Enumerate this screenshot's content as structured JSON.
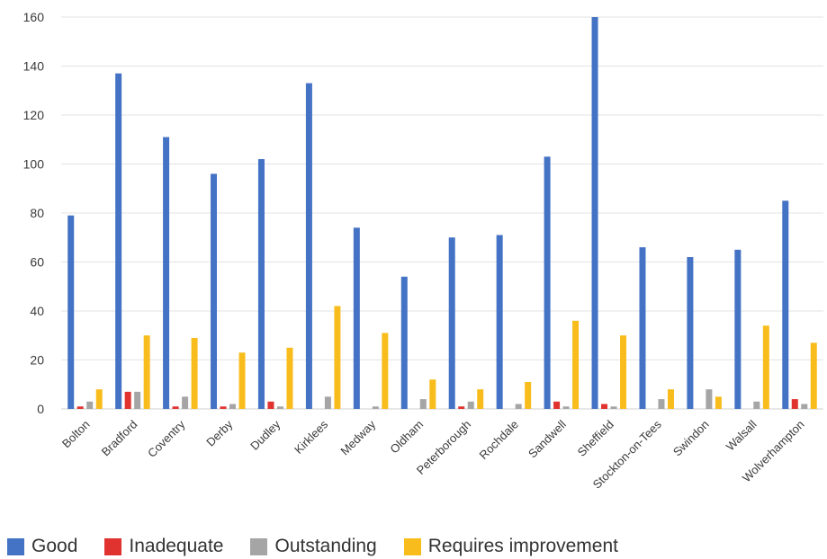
{
  "chart_data": {
    "type": "bar",
    "categories": [
      "Bolton",
      "Bradford",
      "Coventry",
      "Derby",
      "Dudley",
      "Kirklees",
      "Medway",
      "Oldham",
      "Peterborough",
      "Rochdale",
      "Sandwell",
      "Sheffield",
      "Stockton-on-Tees",
      "Swindon",
      "Walsall",
      "Wolverhampton"
    ],
    "series": [
      {
        "name": "Good",
        "color": "#4472C4",
        "values": [
          79,
          137,
          111,
          96,
          102,
          133,
          74,
          54,
          70,
          71,
          103,
          160,
          66,
          62,
          65,
          85
        ]
      },
      {
        "name": "Inadequate",
        "color": "#E0322F",
        "values": [
          1,
          7,
          1,
          1,
          3,
          0,
          0,
          0,
          1,
          0,
          3,
          2,
          0,
          0,
          0,
          4
        ]
      },
      {
        "name": "Outstanding",
        "color": "#A5A5A5",
        "values": [
          3,
          7,
          5,
          2,
          1,
          5,
          1,
          4,
          3,
          2,
          1,
          1,
          4,
          8,
          3,
          2
        ]
      },
      {
        "name": "Requires improvement",
        "color": "#F8BD1C",
        "values": [
          8,
          30,
          29,
          23,
          25,
          42,
          31,
          12,
          8,
          11,
          36,
          30,
          8,
          5,
          34,
          27
        ]
      }
    ],
    "yticks": [
      "0",
      "20",
      "40",
      "60",
      "80",
      "100",
      "120",
      "140",
      "160"
    ],
    "ylim": [
      0,
      160
    ],
    "grid": true,
    "legend_position": "bottom-left"
  }
}
